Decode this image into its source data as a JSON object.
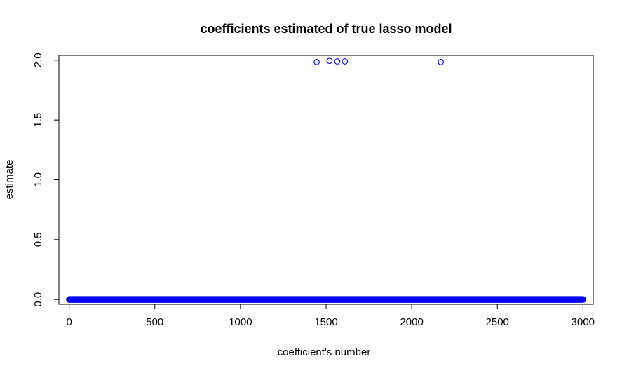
{
  "chart_data": {
    "type": "scatter",
    "title": "coefficients estimated of true lasso model",
    "xlabel": "coefficient's number",
    "ylabel": "estimate",
    "xlim": [
      -60,
      3060
    ],
    "ylim": [
      -0.04,
      2.04
    ],
    "x_ticks": [
      0,
      500,
      1000,
      1500,
      2000,
      2500,
      3000
    ],
    "x_tick_labels": [
      "0",
      "500",
      "1000",
      "1500",
      "2000",
      "2500",
      "3000"
    ],
    "y_ticks": [
      0.0,
      0.5,
      1.0,
      1.5,
      2.0
    ],
    "y_tick_labels": [
      "0.0",
      "0.5",
      "1.0",
      "1.5",
      "2.0"
    ],
    "grid": false,
    "marker": "open-circle",
    "point_color": "#0000ff",
    "series": [
      {
        "zero_run": {
          "x_start": 1,
          "x_end": 3000,
          "y": 0.0
        },
        "points": [
          {
            "x": 1445,
            "y": 1.985
          },
          {
            "x": 1520,
            "y": 1.995
          },
          {
            "x": 1565,
            "y": 1.99
          },
          {
            "x": 1610,
            "y": 1.99
          },
          {
            "x": 2170,
            "y": 1.985
          }
        ]
      }
    ]
  }
}
